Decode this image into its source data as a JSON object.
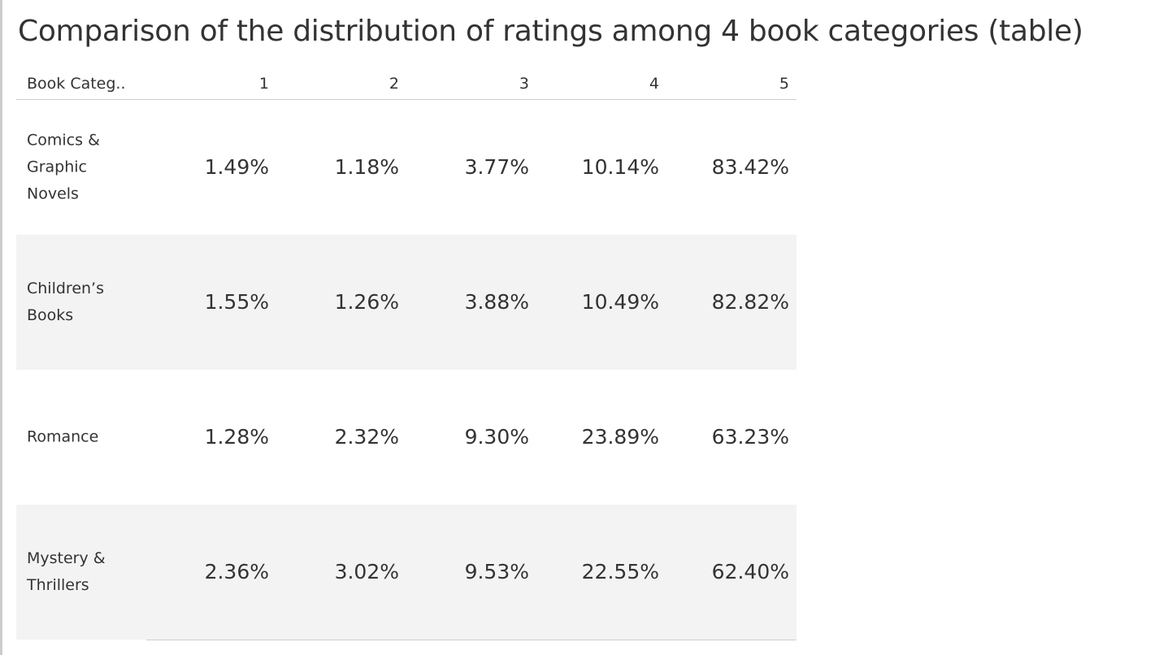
{
  "chart_data": {
    "type": "table",
    "title": "Comparison of the distribution of ratings among 4 book categories (table)",
    "row_header": "Book Categ..",
    "columns": [
      "1",
      "2",
      "3",
      "4",
      "5"
    ],
    "rows": [
      {
        "category_lines": [
          "Comics &",
          "Graphic",
          "Novels"
        ],
        "category": "Comics & Graphic Novels",
        "values": [
          "1.49%",
          "1.18%",
          "3.77%",
          "10.14%",
          "83.42%"
        ]
      },
      {
        "category_lines": [
          "Children’s",
          "Books"
        ],
        "category": "Children’s Books",
        "values": [
          "1.55%",
          "1.26%",
          "3.88%",
          "10.49%",
          "82.82%"
        ]
      },
      {
        "category_lines": [
          "Romance"
        ],
        "category": "Romance",
        "values": [
          "1.28%",
          "2.32%",
          "9.30%",
          "23.89%",
          "63.23%"
        ]
      },
      {
        "category_lines": [
          "Mystery &",
          "Thrillers"
        ],
        "category": "Mystery & Thrillers",
        "values": [
          "2.36%",
          "3.02%",
          "9.53%",
          "22.55%",
          "62.40%"
        ]
      }
    ],
    "row_banding": true,
    "colors": {
      "text": "#333333",
      "band": "#f3f3f3",
      "rule": "#cfcfcf"
    }
  }
}
